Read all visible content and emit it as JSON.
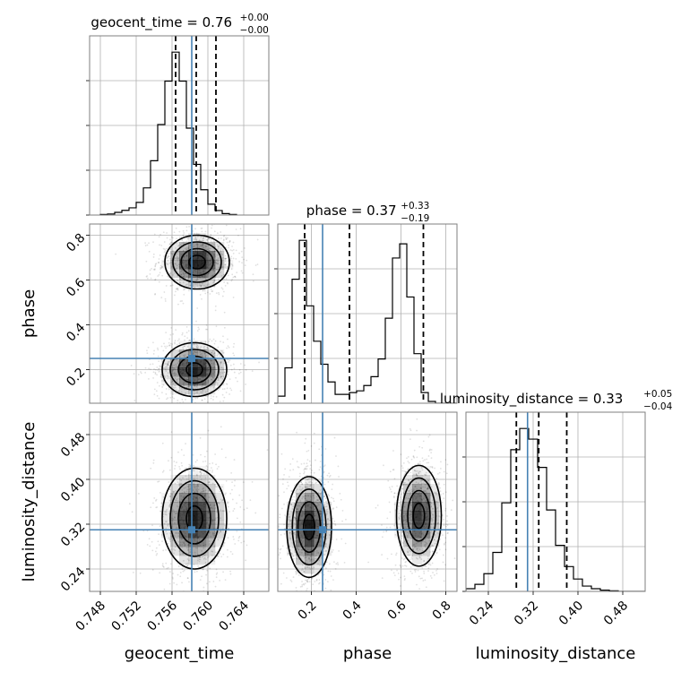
{
  "chart_data": {
    "type": "corner",
    "parameters": [
      "geocent_time",
      "phase",
      "luminosity_distance"
    ],
    "axes": {
      "geocent_time": {
        "label": "geocent_time",
        "range": [
          0.7468,
          0.7668
        ],
        "ticks": [
          0.748,
          0.752,
          0.756,
          0.76,
          0.764
        ],
        "tick_labels": [
          "0.748",
          "0.752",
          "0.756",
          "0.760",
          "0.764"
        ]
      },
      "phase": {
        "label": "phase",
        "range": [
          0.05,
          0.85
        ],
        "ticks_x": [
          0.2,
          0.4,
          0.6,
          0.8
        ],
        "tick_labels_x": [
          "0.2",
          "0.4",
          "0.6",
          "0.8"
        ],
        "ticks_y": [
          0.2,
          0.4,
          0.6,
          0.8
        ],
        "tick_labels_y": [
          "0.2",
          "0.4",
          "0.6",
          "0.8"
        ]
      },
      "luminosity_distance": {
        "label": "luminosity_distance",
        "range": [
          0.2,
          0.52
        ],
        "ticks_x": [
          0.24,
          0.32,
          0.4,
          0.48
        ],
        "tick_labels_x": [
          "0.24",
          "0.32",
          "0.40",
          "0.48"
        ],
        "ticks_y": [
          0.24,
          0.32,
          0.4,
          0.48
        ],
        "tick_labels_y": [
          "0.24",
          "0.32",
          "0.40",
          "0.48"
        ]
      }
    },
    "truths": {
      "geocent_time": 0.7582,
      "phase": 0.25,
      "luminosity_distance": 0.31
    },
    "quantiles": {
      "geocent_time": [
        0.7564,
        0.7587,
        0.7609
      ],
      "phase": [
        0.17,
        0.37,
        0.7
      ],
      "luminosity_distance": [
        0.29,
        0.33,
        0.38
      ]
    },
    "titles": {
      "geocent_time": {
        "text": "geocent_time = 0.76",
        "plus": "+0.00",
        "minus": "−0.00"
      },
      "phase": {
        "text": "phase = 0.37",
        "plus": "+0.33",
        "minus": "−0.19"
      },
      "luminosity_distance": {
        "text": "luminosity_distance = 0.33",
        "plus": "+0.05",
        "minus": "−0.04"
      }
    },
    "histograms": {
      "geocent_time": {
        "start": 0.748,
        "bin_width": 0.0008,
        "counts": [
          0.3,
          0.6,
          1.5,
          2.6,
          4.0,
          7.0,
          15.0,
          30.0,
          50.0,
          74.0,
          90.0,
          74.0,
          48.0,
          28.0,
          14.0,
          6.0,
          2.5,
          0.8,
          0.3
        ]
      },
      "phase": {
        "start": 0.05,
        "bin_width": 0.032,
        "counts": [
          4.0,
          20.0,
          70.0,
          92.0,
          55.0,
          35.0,
          22.0,
          12.0,
          5.0,
          5.0,
          6.0,
          7.0,
          10.0,
          15.0,
          25.0,
          48.0,
          82.0,
          90.0,
          60.0,
          28.0,
          6.0,
          1.0,
          0.0,
          0.0,
          0.0
        ]
      },
      "luminosity_distance": {
        "start": 0.2,
        "bin_width": 0.016,
        "counts": [
          1.5,
          4.0,
          10.0,
          22.0,
          50.0,
          80.0,
          92.0,
          86.0,
          70.0,
          46.0,
          26.0,
          14.0,
          7.0,
          3.0,
          1.5,
          0.7,
          0.3,
          0.0,
          0.0,
          0.0
        ]
      }
    },
    "density_2d": [
      {
        "x": "geocent_time",
        "y": "phase",
        "clusters": [
          {
            "cx": 0.7588,
            "cy": 0.68,
            "sx": 0.0018,
            "sy": 0.06,
            "w": 1.0
          },
          {
            "cx": 0.7585,
            "cy": 0.2,
            "sx": 0.0018,
            "sy": 0.06,
            "w": 1.0
          }
        ]
      },
      {
        "x": "geocent_time",
        "y": "luminosity_distance",
        "clusters": [
          {
            "cx": 0.7585,
            "cy": 0.33,
            "sx": 0.0018,
            "sy": 0.045,
            "w": 1.0
          }
        ]
      },
      {
        "x": "phase",
        "y": "luminosity_distance",
        "clusters": [
          {
            "cx": 0.19,
            "cy": 0.315,
            "sx": 0.05,
            "sy": 0.045,
            "w": 1.0
          },
          {
            "cx": 0.68,
            "cy": 0.335,
            "sx": 0.05,
            "sy": 0.045,
            "w": 0.9
          }
        ]
      }
    ],
    "grid": true,
    "colors": {
      "truth": "#4682b4",
      "hist": "#000000",
      "density": "#000000",
      "frame": "#7f7f7f"
    }
  }
}
